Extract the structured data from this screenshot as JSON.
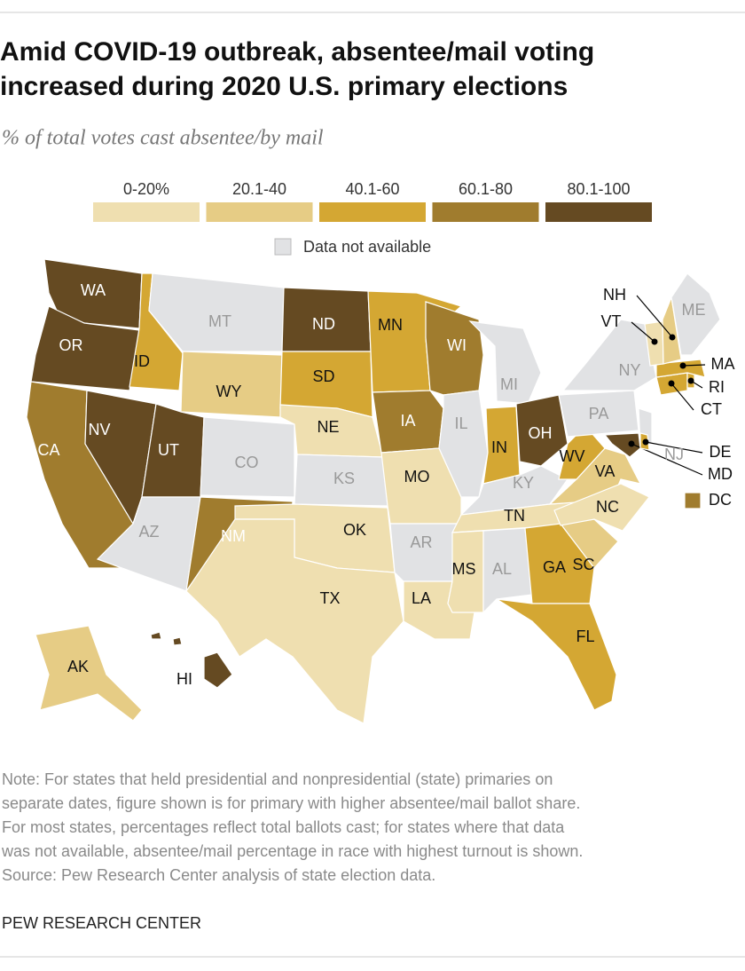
{
  "title": [
    "Amid COVID-19 outbreak, absentee/mail voting",
    "increased during 2020 U.S. primary elections"
  ],
  "subtitle": "% of total votes cast absentee/by mail",
  "legend": [
    {
      "label": "0-20%",
      "color": "#efdfb0"
    },
    {
      "label": "20.1-40",
      "color": "#e6cc85"
    },
    {
      "label": "40.1-60",
      "color": "#d4a733"
    },
    {
      "label": "60.1-80",
      "color": "#a07c2e"
    },
    {
      "label": "80.1-100",
      "color": "#654a22"
    }
  ],
  "not_available": {
    "label": "Data not available",
    "color": "#e1e2e4"
  },
  "states": [
    {
      "label": "WA",
      "color": "#654a22"
    },
    {
      "label": "OR",
      "color": "#654a22"
    },
    {
      "label": "CA",
      "color": "#a07c2e"
    },
    {
      "label": "NV",
      "color": "#654a22"
    },
    {
      "label": "ID",
      "color": "#d4a733"
    },
    {
      "label": "MT",
      "color": "#e1e2e4"
    },
    {
      "label": "WY",
      "color": "#e6cc85"
    },
    {
      "label": "UT",
      "color": "#654a22"
    },
    {
      "label": "CO",
      "color": "#e1e2e4"
    },
    {
      "label": "AZ",
      "color": "#e1e2e4"
    },
    {
      "label": "NM",
      "color": "#a07c2e"
    },
    {
      "label": "ND",
      "color": "#654a22"
    },
    {
      "label": "SD",
      "color": "#d4a733"
    },
    {
      "label": "NE",
      "color": "#efdfb0"
    },
    {
      "label": "KS",
      "color": "#e1e2e4"
    },
    {
      "label": "OK",
      "color": "#efdfb0"
    },
    {
      "label": "TX",
      "color": "#efdfb0"
    },
    {
      "label": "MN",
      "color": "#d4a733"
    },
    {
      "label": "IA",
      "color": "#a07c2e"
    },
    {
      "label": "MO",
      "color": "#efdfb0"
    },
    {
      "label": "AR",
      "color": "#e1e2e4"
    },
    {
      "label": "LA",
      "color": "#efdfb0"
    },
    {
      "label": "WI",
      "color": "#a07c2e"
    },
    {
      "label": "IL",
      "color": "#e1e2e4"
    },
    {
      "label": "MI",
      "color": "#e1e2e4"
    },
    {
      "label": "IN",
      "color": "#d4a733"
    },
    {
      "label": "OH",
      "color": "#654a22"
    },
    {
      "label": "KY",
      "color": "#e1e2e4"
    },
    {
      "label": "TN",
      "color": "#efdfb0"
    },
    {
      "label": "MS",
      "color": "#efdfb0"
    },
    {
      "label": "AL",
      "color": "#e1e2e4"
    },
    {
      "label": "GA",
      "color": "#d4a733"
    },
    {
      "label": "FL",
      "color": "#d4a733"
    },
    {
      "label": "SC",
      "color": "#e6cc85"
    },
    {
      "label": "VA",
      "color": "#e6cc85"
    },
    {
      "label": "NC",
      "color": "#efdfb0"
    },
    {
      "label": "WV",
      "color": "#d4a733"
    },
    {
      "label": "PA",
      "color": "#e1e2e4"
    },
    {
      "label": "NY",
      "color": "#e1e2e4"
    },
    {
      "label": "NJ",
      "color": "#e1e2e4"
    },
    {
      "label": "MD",
      "color": "#654a22"
    },
    {
      "label": "DE",
      "color": "#d4a733"
    },
    {
      "label": "DC",
      "color": "#a07c2e"
    },
    {
      "label": "CT",
      "color": "#d4a733"
    },
    {
      "label": "RI",
      "color": "#d4a733"
    },
    {
      "label": "MA",
      "color": "#d4a733"
    },
    {
      "label": "VT",
      "color": "#efdfb0"
    },
    {
      "label": "NH",
      "color": "#e6cc85"
    },
    {
      "label": "ME",
      "color": "#e1e2e4"
    },
    {
      "label": "AK",
      "color": "#e6cc85"
    },
    {
      "label": "HI",
      "color": "#654a22"
    }
  ],
  "note": [
    "Note: For states that held presidential and nonpresidential (state) primaries on",
    "separate dates, figure shown is for primary with higher absentee/mail ballot share.",
    "For most states, percentages reflect total ballots cast; for states where that data",
    "was not available, absentee/mail percentage in race with highest turnout is shown.",
    "Source: Pew Research Center analysis of state election data."
  ],
  "footer": "PEW RESEARCH CENTER"
}
